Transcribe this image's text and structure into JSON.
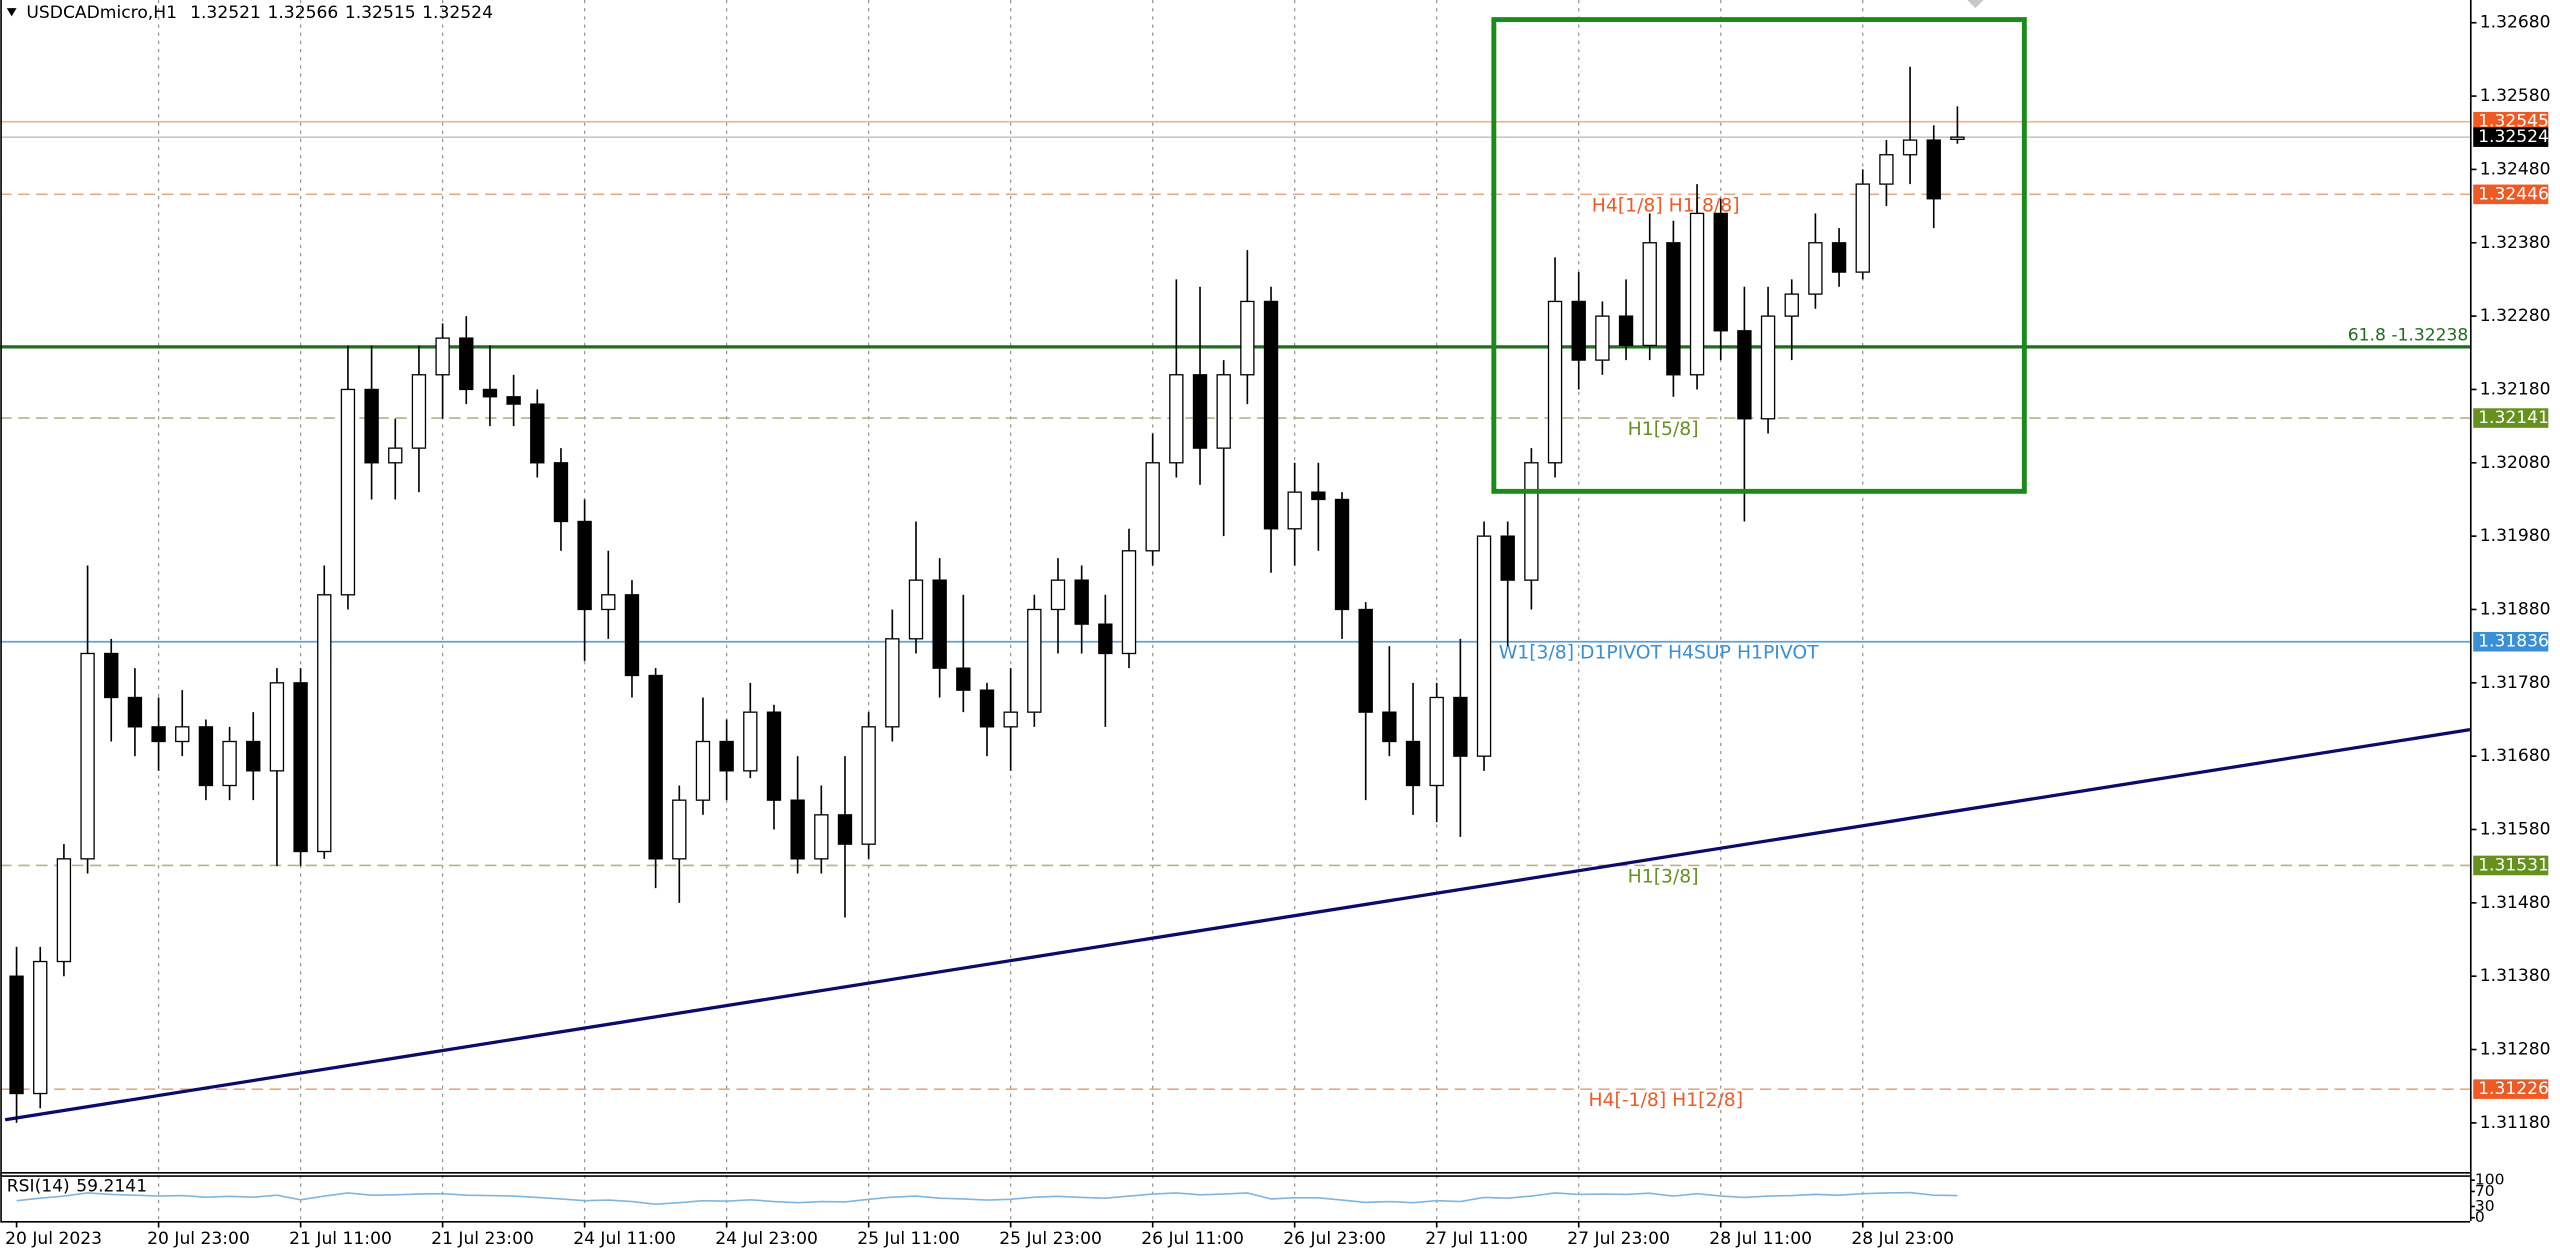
{
  "chart_data": {
    "type": "candlestick",
    "title": "USDCADmicro,H1",
    "categories": [
      "20 Jul 2023",
      null,
      null,
      null,
      null,
      null,
      "20 Jul 23:00",
      null,
      null,
      null,
      null,
      null,
      "21 Jul 11:00",
      null,
      null,
      null,
      null,
      null,
      "21 Jul 23:00",
      null,
      null,
      null,
      null,
      null,
      "24 Jul 11:00",
      null,
      null,
      null,
      null,
      null,
      "24 Jul 23:00",
      null,
      null,
      null,
      null,
      null,
      "25 Jul 11:00",
      null,
      null,
      null,
      null,
      null,
      "25 Jul 23:00",
      null,
      null,
      null,
      null,
      null,
      "26 Jul 11:00",
      null,
      null,
      null,
      null,
      null,
      "26 Jul 23:00",
      null,
      null,
      null,
      null,
      null,
      "27 Jul 11:00",
      null,
      null,
      null,
      null,
      null,
      "27 Jul 23:00",
      null,
      null,
      null,
      null,
      null,
      "28 Jul 11:00",
      null,
      null,
      null,
      null,
      null,
      "28 Jul 23:00",
      null,
      null,
      null,
      null
    ],
    "open": [
      1.3138,
      1.3122,
      1.314,
      1.3154,
      1.3182,
      1.3176,
      1.3172,
      1.317,
      1.3172,
      1.3164,
      1.317,
      1.3166,
      1.3178,
      1.3155,
      1.319,
      1.3218,
      1.3208,
      1.321,
      1.322,
      1.3225,
      1.3218,
      1.3217,
      1.3216,
      1.3208,
      1.32,
      1.3188,
      1.319,
      1.3179,
      1.3154,
      1.3162,
      1.317,
      1.3166,
      1.3174,
      1.3162,
      1.3154,
      1.316,
      1.3156,
      1.3172,
      1.3184,
      1.3192,
      1.318,
      1.3177,
      1.3172,
      1.3174,
      1.3188,
      1.3192,
      1.3186,
      1.3182,
      1.3196,
      1.3208,
      1.322,
      1.321,
      1.322,
      1.323,
      1.3199,
      1.3204,
      1.3203,
      1.3188,
      1.3174,
      1.317,
      1.3164,
      1.3176,
      1.3168,
      1.3198,
      1.3192,
      1.3208,
      1.323,
      1.3222,
      1.3228,
      1.3224,
      1.3238,
      1.322,
      1.3242,
      1.3226,
      1.3214,
      1.3228,
      1.3231,
      1.3238,
      1.3234,
      1.3246,
      1.325,
      1.3252,
      1.32521
    ],
    "high": [
      1.3142,
      1.3142,
      1.3156,
      1.3194,
      1.3184,
      1.318,
      1.3176,
      1.3177,
      1.3173,
      1.3172,
      1.3174,
      1.318,
      1.318,
      1.3194,
      1.3224,
      1.3224,
      1.3214,
      1.3224,
      1.3227,
      1.3228,
      1.3224,
      1.322,
      1.3218,
      1.321,
      1.3203,
      1.3196,
      1.3192,
      1.318,
      1.3164,
      1.3176,
      1.3173,
      1.3178,
      1.3175,
      1.3168,
      1.3164,
      1.3168,
      1.3174,
      1.3188,
      1.32,
      1.3195,
      1.319,
      1.3178,
      1.318,
      1.319,
      1.3195,
      1.3194,
      1.319,
      1.3199,
      1.3212,
      1.3233,
      1.3232,
      1.3222,
      1.3237,
      1.3232,
      1.3208,
      1.3208,
      1.3204,
      1.3189,
      1.3183,
      1.3178,
      1.3178,
      1.3184,
      1.32,
      1.32,
      1.321,
      1.3236,
      1.3234,
      1.323,
      1.3233,
      1.3242,
      1.3241,
      1.3246,
      1.3244,
      1.3232,
      1.3232,
      1.3233,
      1.3242,
      1.324,
      1.3248,
      1.3252,
      1.3262,
      1.3254,
      1.32566
    ],
    "low": [
      1.3118,
      1.312,
      1.3138,
      1.3152,
      1.317,
      1.3168,
      1.3166,
      1.3168,
      1.3162,
      1.3162,
      1.3162,
      1.3153,
      1.3153,
      1.3154,
      1.3188,
      1.3203,
      1.3203,
      1.3204,
      1.3214,
      1.3216,
      1.3213,
      1.3213,
      1.3206,
      1.3196,
      1.3181,
      1.3184,
      1.3176,
      1.315,
      1.3148,
      1.316,
      1.3162,
      1.3165,
      1.3158,
      1.3152,
      1.3152,
      1.3146,
      1.3154,
      1.317,
      1.3182,
      1.3176,
      1.3174,
      1.3168,
      1.3166,
      1.3172,
      1.3182,
      1.3182,
      1.3172,
      1.318,
      1.3194,
      1.3206,
      1.3205,
      1.3198,
      1.3216,
      1.3193,
      1.3194,
      1.3196,
      1.3184,
      1.3162,
      1.3168,
      1.316,
      1.3159,
      1.3157,
      1.3166,
      1.3183,
      1.3188,
      1.3206,
      1.3218,
      1.322,
      1.3222,
      1.3222,
      1.3217,
      1.3218,
      1.3222,
      1.32,
      1.3212,
      1.3222,
      1.3229,
      1.3232,
      1.3233,
      1.3243,
      1.3246,
      1.324,
      1.32515
    ],
    "close": [
      1.3122,
      1.314,
      1.3154,
      1.3182,
      1.3176,
      1.3172,
      1.317,
      1.3172,
      1.3164,
      1.317,
      1.3166,
      1.3178,
      1.3155,
      1.319,
      1.3218,
      1.3208,
      1.321,
      1.322,
      1.3225,
      1.3218,
      1.3217,
      1.3216,
      1.3208,
      1.32,
      1.3188,
      1.319,
      1.3179,
      1.3154,
      1.3162,
      1.317,
      1.3166,
      1.3174,
      1.3162,
      1.3154,
      1.316,
      1.3156,
      1.3172,
      1.3184,
      1.3192,
      1.318,
      1.3177,
      1.3172,
      1.3174,
      1.3188,
      1.3192,
      1.3186,
      1.3182,
      1.3196,
      1.3208,
      1.322,
      1.321,
      1.322,
      1.323,
      1.3199,
      1.3204,
      1.3203,
      1.3188,
      1.3174,
      1.317,
      1.3164,
      1.3176,
      1.3168,
      1.3198,
      1.3192,
      1.3208,
      1.323,
      1.3222,
      1.3228,
      1.3224,
      1.3238,
      1.322,
      1.3242,
      1.3226,
      1.3214,
      1.3228,
      1.3231,
      1.3238,
      1.3234,
      1.3246,
      1.325,
      1.3252,
      1.3244,
      1.32524
    ],
    "up_color": "#ffffff",
    "down_color": "#000000",
    "ylim": [
      1.31113,
      1.32711
    ],
    "yticks": [
      {
        "value": 1.3268,
        "label": "1.32680"
      },
      {
        "value": 1.3258,
        "label": "1.32580"
      },
      {
        "value": 1.3248,
        "label": "1.32480"
      },
      {
        "value": 1.3238,
        "label": "1.32380"
      },
      {
        "value": 1.3228,
        "label": "1.32280"
      },
      {
        "value": 1.3218,
        "label": "1.32180"
      },
      {
        "value": 1.3208,
        "label": "1.32080"
      },
      {
        "value": 1.3198,
        "label": "1.31980"
      },
      {
        "value": 1.3188,
        "label": "1.31880"
      },
      {
        "value": 1.3178,
        "label": "1.31780"
      },
      {
        "value": 1.3168,
        "label": "1.31680"
      },
      {
        "value": 1.3158,
        "label": "1.31580"
      },
      {
        "value": 1.3148,
        "label": "1.31480"
      },
      {
        "value": 1.3138,
        "label": "1.31380"
      },
      {
        "value": 1.3128,
        "label": "1.31280"
      },
      {
        "value": 1.3118,
        "label": "1.31180"
      }
    ],
    "grid": true,
    "levels": [
      {
        "value": 1.32545,
        "color": "#ef5a24",
        "line_color": "#f2b49a",
        "style": "solid"
      },
      {
        "value": 1.32524,
        "color": "#000000",
        "line_color": "#c8c8c8",
        "style": "solid"
      },
      {
        "value": 1.32446,
        "color": "#ef5a24",
        "line_color": "#e8a883",
        "style": "dashed",
        "annotation": "H4[1/8] H1[8/8]"
      },
      {
        "value": 1.32238,
        "label": "61.8 -1.32238",
        "color": "#1f6e1f",
        "line_color": "#1f6e1f",
        "style": "solid"
      },
      {
        "value": 1.32141,
        "color": "#66911f",
        "line_color": "#b8b08a",
        "style": "dashed",
        "annotation": "H1[5/8]"
      },
      {
        "value": 1.31836,
        "color": "#3b8fd4",
        "line_color": "#5aa2dc",
        "style": "solid",
        "annotation": "W1[3/8] D1PIVOT H4SUP H1PIVOT"
      },
      {
        "value": 1.31531,
        "color": "#66911f",
        "line_color": "#b8b08a",
        "style": "dashed",
        "annotation": "H1[3/8]"
      },
      {
        "value": 1.31226,
        "color": "#ef5a24",
        "line_color": "#e8a883",
        "style": "dashed",
        "annotation": "H4[-1/8] H1[2/8]"
      }
    ],
    "rsi": {
      "title": "RSI(14)",
      "color": "#7fb6e0",
      "ylim": [
        0,
        100
      ],
      "yticks": [
        0,
        30,
        70,
        100
      ],
      "values": [
        45,
        52,
        58,
        66,
        62,
        60,
        58,
        59,
        55,
        57,
        55,
        60,
        48,
        58,
        66,
        60,
        61,
        63,
        64,
        60,
        59,
        58,
        54,
        50,
        45,
        47,
        43,
        36,
        40,
        45,
        44,
        48,
        43,
        40,
        43,
        42,
        49,
        55,
        58,
        52,
        50,
        47,
        49,
        55,
        57,
        54,
        52,
        58,
        63,
        66,
        61,
        63,
        66,
        50,
        53,
        53,
        47,
        41,
        43,
        40,
        45,
        43,
        54,
        52,
        58,
        66,
        62,
        63,
        62,
        65,
        58,
        64,
        58,
        54,
        58,
        59,
        62,
        60,
        64,
        66,
        67,
        60,
        59.2141
      ]
    }
  }
}
